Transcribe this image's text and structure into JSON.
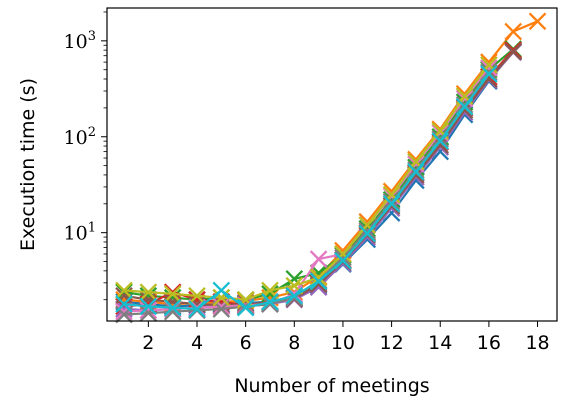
{
  "chart_data": {
    "type": "line",
    "marker": "x",
    "xlabel": "Number of meetings",
    "ylabel": "Execution time (s)",
    "xlim": [
      0.3,
      18.8
    ],
    "ylim": [
      1.2,
      2200
    ],
    "yscale": "log",
    "x_ticks": [
      2,
      4,
      6,
      8,
      10,
      12,
      14,
      16,
      18
    ],
    "x_tick_labels": [
      "2",
      "4",
      "6",
      "8",
      "10",
      "12",
      "14",
      "16",
      "18"
    ],
    "y_ticks": [
      10,
      100,
      1000
    ],
    "y_tick_labels": [
      {
        "base": "10",
        "exp": "1"
      },
      {
        "base": "10",
        "exp": "2"
      },
      {
        "base": "10",
        "exp": "3"
      }
    ],
    "grid": false,
    "legend": "none",
    "series": [
      {
        "color": "#1f77b4",
        "x": [
          1,
          2,
          3,
          4,
          5,
          6,
          7,
          8,
          9,
          10,
          11,
          12,
          13,
          14,
          15,
          16,
          17
        ],
        "y": [
          1.9,
          1.8,
          1.7,
          1.75,
          1.8,
          1.85,
          1.9,
          2.1,
          2.8,
          4.7,
          8.5,
          16,
          35,
          70,
          170,
          380,
          780
        ]
      },
      {
        "color": "#ff7f0e",
        "x": [
          1,
          2,
          3,
          4,
          5,
          6,
          7,
          8,
          9,
          10,
          11,
          12,
          13,
          14,
          15,
          16,
          17,
          18
        ],
        "y": [
          2.0,
          1.9,
          1.8,
          1.85,
          1.9,
          1.95,
          2.1,
          2.4,
          3.5,
          6.5,
          13,
          27,
          58,
          120,
          280,
          600,
          1250,
          1600
        ]
      },
      {
        "color": "#2ca02c",
        "x": [
          1,
          2,
          3,
          4,
          5,
          6,
          7,
          8,
          9,
          10,
          11,
          12,
          13,
          14,
          15,
          16,
          17
        ],
        "y": [
          2.4,
          2.2,
          2.1,
          2.0,
          2.1,
          2.0,
          2.3,
          3.3,
          3.8,
          5.8,
          11,
          22,
          48,
          100,
          230,
          500,
          820
        ]
      },
      {
        "color": "#d62728",
        "x": [
          1,
          2,
          3,
          4,
          5,
          6,
          7,
          8,
          9,
          10,
          11,
          12,
          13,
          14,
          15,
          16,
          17
        ],
        "y": [
          1.7,
          1.8,
          2.4,
          2.0,
          1.9,
          1.75,
          1.9,
          2.2,
          3.0,
          5.2,
          10,
          20,
          42,
          88,
          200,
          420,
          800
        ]
      },
      {
        "color": "#9467bd",
        "x": [
          1,
          2,
          3,
          4,
          5,
          6,
          7,
          8,
          9,
          10,
          11,
          12,
          13,
          14,
          15,
          16,
          17
        ],
        "y": [
          1.6,
          1.55,
          1.6,
          1.65,
          1.7,
          1.7,
          1.8,
          2.0,
          2.7,
          4.8,
          9,
          18,
          38,
          78,
          180,
          390,
          760
        ]
      },
      {
        "color": "#8c564b",
        "x": [
          1,
          2,
          3,
          4,
          5,
          6,
          7,
          8,
          9,
          10,
          11,
          12,
          13,
          14,
          15,
          16,
          17
        ],
        "y": [
          2.2,
          2.0,
          1.9,
          1.8,
          1.75,
          1.8,
          1.85,
          2.05,
          2.9,
          5.0,
          9.5,
          19,
          40,
          82,
          190,
          400,
          770
        ]
      },
      {
        "color": "#e377c2",
        "x": [
          1,
          2,
          3,
          4,
          5,
          6,
          7,
          8,
          9,
          10,
          11,
          12,
          13,
          14,
          15,
          16
        ],
        "y": [
          1.5,
          1.55,
          1.6,
          1.65,
          1.7,
          1.75,
          1.8,
          2.3,
          5.3,
          6.0,
          12,
          24,
          52,
          110,
          250,
          520
        ]
      },
      {
        "color": "#7f7f7f",
        "x": [
          1,
          2,
          3,
          4,
          5,
          6,
          7,
          8,
          9,
          10,
          11,
          12,
          13,
          14,
          15,
          16
        ],
        "y": [
          1.4,
          1.45,
          1.5,
          1.55,
          1.6,
          1.7,
          1.8,
          2.1,
          3.2,
          5.5,
          10.5,
          21,
          45,
          95,
          215,
          470
        ]
      },
      {
        "color": "#bcbd22",
        "x": [
          1,
          2,
          3,
          4,
          5,
          6,
          7,
          8,
          9,
          10,
          11,
          12,
          13,
          14,
          15,
          16
        ],
        "y": [
          2.5,
          2.4,
          2.3,
          2.2,
          2.1,
          2.0,
          2.5,
          2.8,
          3.4,
          6.0,
          12,
          25,
          55,
          115,
          265,
          560
        ]
      },
      {
        "color": "#17becf",
        "x": [
          1,
          2,
          3,
          4,
          5,
          6,
          7,
          8,
          9,
          10,
          11,
          12,
          13,
          14,
          15,
          16
        ],
        "y": [
          1.8,
          1.7,
          1.65,
          1.6,
          2.5,
          1.65,
          1.9,
          2.2,
          3.1,
          5.1,
          9.8,
          20,
          43,
          90,
          205,
          450
        ]
      }
    ]
  }
}
